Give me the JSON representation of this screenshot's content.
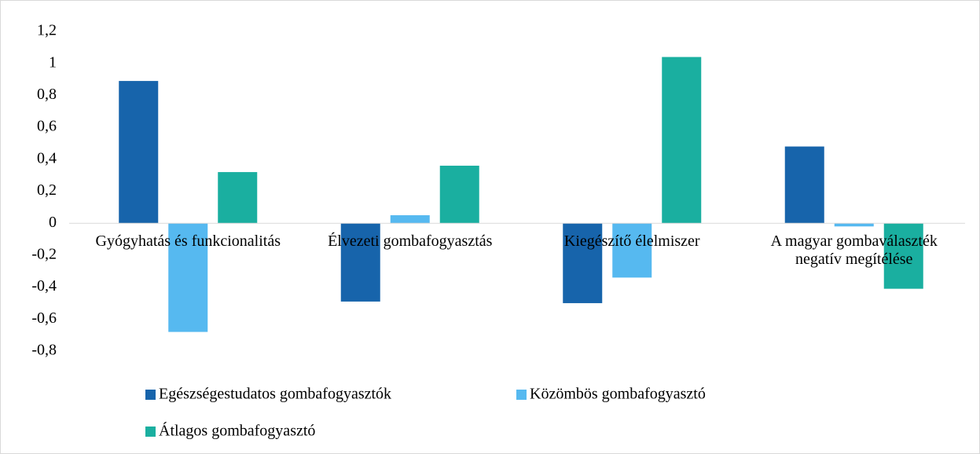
{
  "chart_data": {
    "type": "bar",
    "categories": [
      "Gyógyhatás és funkcionalitás",
      "Élvezeti gombafogyasztás",
      "Kiegészítő élelmiszer",
      "A magyar gombaválaszték negatív megítélése"
    ],
    "series": [
      {
        "name": "Egészségestudatos gombafogyasztók",
        "color": "#1764ab",
        "values": [
          0.89,
          -0.49,
          -0.5,
          0.48
        ]
      },
      {
        "name": "Közömbös gombafogyasztó",
        "color": "#56b9f0",
        "values": [
          -0.68,
          0.05,
          -0.34,
          -0.02
        ]
      },
      {
        "name": "Átlagos gombafogyasztó",
        "color": "#1aafa0",
        "values": [
          0.32,
          0.36,
          1.04,
          -0.41
        ]
      }
    ],
    "ylim": [
      -0.8,
      1.2
    ],
    "yticks": [
      {
        "value": -0.8,
        "label": "-0,8"
      },
      {
        "value": -0.6,
        "label": "-0,6"
      },
      {
        "value": -0.4,
        "label": "-0,4"
      },
      {
        "value": -0.2,
        "label": "-0,2"
      },
      0,
      {
        "value": 0.2,
        "label": "0,2"
      },
      {
        "value": 0.4,
        "label": "0,4"
      },
      {
        "value": 0.6,
        "label": "0,6"
      },
      {
        "value": 0.8,
        "label": "0,8"
      },
      1,
      {
        "value": 1.2,
        "label": "1,2"
      }
    ],
    "grid": false,
    "legend": "bottom"
  }
}
